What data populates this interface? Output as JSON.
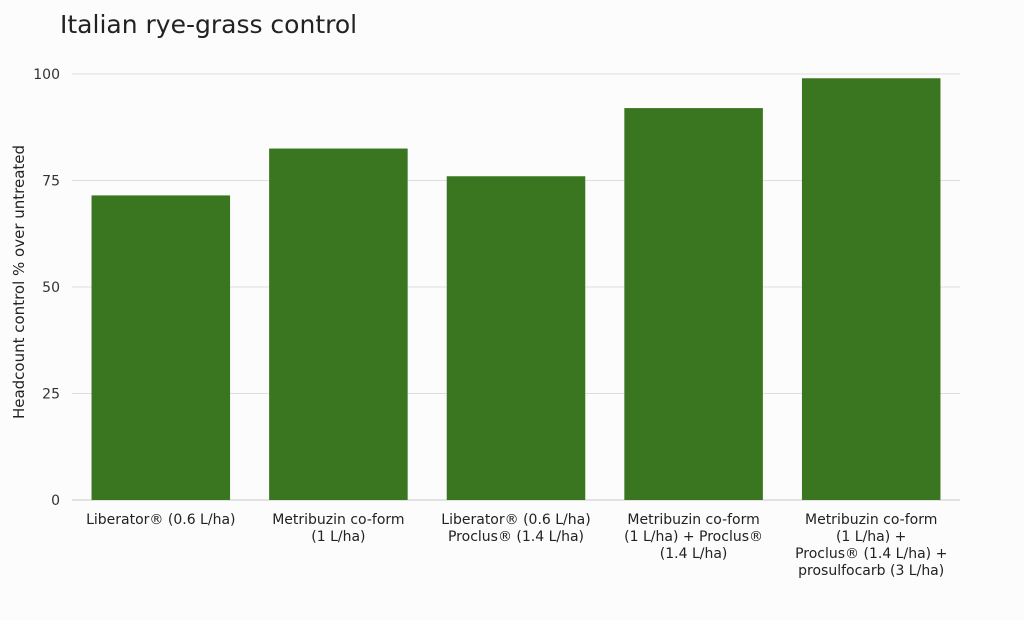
{
  "title": "Italian rye-grass control",
  "chart_data": {
    "type": "bar",
    "title": "Italian rye-grass control",
    "xlabel": "",
    "ylabel": "Headcount control % over untreated",
    "ylim": [
      0,
      100
    ],
    "yticks": [
      0,
      25,
      50,
      75,
      100
    ],
    "grid": true,
    "bar_color": "#3a7520",
    "categories": [
      [
        "Liberator® (0.6 L/ha)"
      ],
      [
        "Metribuzin co-form",
        "(1 L/ha)"
      ],
      [
        "Liberator® (0.6 L/ha)",
        "Proclus® (1.4 L/ha)"
      ],
      [
        "Metribuzin co-form",
        "(1 L/ha) + Proclus®",
        "(1.4 L/ha)"
      ],
      [
        "Metribuzin co-form",
        "(1 L/ha) +",
        "Proclus® (1.4 L/ha) +",
        "prosulfocarb (3 L/ha)"
      ]
    ],
    "values": [
      71.5,
      82.5,
      76,
      92,
      99
    ]
  }
}
